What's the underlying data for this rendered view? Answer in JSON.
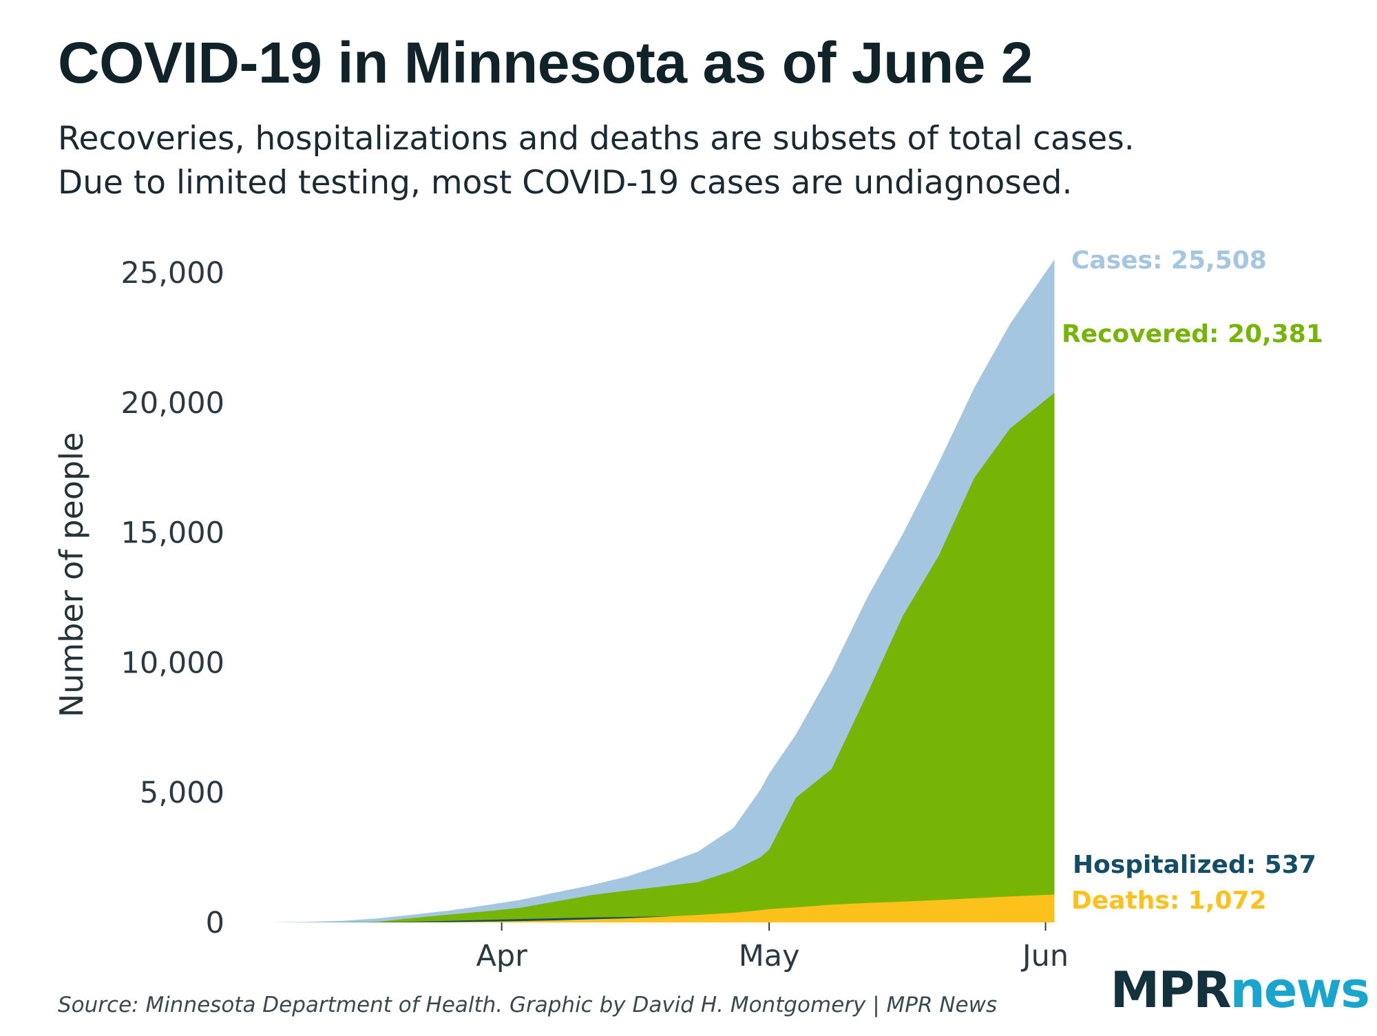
{
  "header": {
    "title": "COVID-19 in Minnesota as of June 2",
    "subtitle_lines": [
      "Recoveries, hospitalizations and deaths are subsets of total cases.",
      "Due to limited testing, most COVID-19 cases are undiagnosed."
    ]
  },
  "footer": {
    "source": "Source: Minnesota Department of Health. Graphic by David H. Montgomery | MPR News",
    "logo_mpr": "MPR",
    "logo_news": "news"
  },
  "chart_data": {
    "type": "area",
    "x": [
      "2020-03-06",
      "2020-03-10",
      "2020-03-14",
      "2020-03-18",
      "2020-03-22",
      "2020-03-26",
      "2020-03-30",
      "2020-04-03",
      "2020-04-07",
      "2020-04-11",
      "2020-04-15",
      "2020-04-19",
      "2020-04-23",
      "2020-04-27",
      "2020-04-30",
      "2020-05-01",
      "2020-05-04",
      "2020-05-08",
      "2020-05-12",
      "2020-05-16",
      "2020-05-20",
      "2020-05-24",
      "2020-05-28",
      "2020-06-02"
    ],
    "series": [
      {
        "name": "Cases",
        "color": "#a5c6e0",
        "values": [
          0,
          20,
          60,
          150,
          300,
          450,
          650,
          860,
          1150,
          1430,
          1760,
          2210,
          2720,
          3640,
          5100,
          5730,
          7230,
          9670,
          12500,
          14950,
          17670,
          20570,
          23020,
          25508
        ]
      },
      {
        "name": "Recovered",
        "color": "#76b505",
        "values": [
          0,
          0,
          0,
          20,
          170,
          300,
          420,
          560,
          800,
          1050,
          1220,
          1380,
          1550,
          2000,
          2500,
          2800,
          4800,
          5900,
          8800,
          11800,
          14100,
          17100,
          19000,
          20381
        ]
      },
      {
        "name": "Hospitalized",
        "color": "#144d66",
        "values": [
          0,
          0,
          2,
          8,
          30,
          60,
          95,
          130,
          160,
          190,
          210,
          230,
          250,
          280,
          310,
          330,
          360,
          390,
          420,
          450,
          480,
          500,
          520,
          537
        ]
      },
      {
        "name": "Deaths",
        "color": "#fcc21b",
        "values": [
          0,
          0,
          0,
          1,
          4,
          10,
          30,
          50,
          80,
          120,
          160,
          220,
          290,
          370,
          470,
          510,
          580,
          680,
          750,
          800,
          860,
          930,
          1000,
          1072
        ]
      }
    ],
    "end_labels": [
      {
        "text": "Cases: 25,508",
        "color": "#a5c6e0"
      },
      {
        "text": "Recovered: 20,381",
        "color": "#76b505"
      },
      {
        "text": "Hospitalized: 537",
        "color": "#144d66"
      },
      {
        "text": "Deaths: 1,072",
        "color": "#fcc21b"
      }
    ],
    "ylabel": "Number of people",
    "ylim": [
      0,
      25508
    ],
    "yticks": [
      0,
      5000,
      10000,
      15000,
      20000,
      25000
    ],
    "ytick_labels": [
      "0",
      "5,000",
      "10,000",
      "15,000",
      "20,000",
      "25,000"
    ],
    "xticks": [
      "2020-04-01",
      "2020-05-01",
      "2020-06-01"
    ],
    "xtick_labels": [
      "Apr",
      "May",
      "Jun"
    ],
    "grid": false,
    "legend": "direct labels at right end of series"
  }
}
